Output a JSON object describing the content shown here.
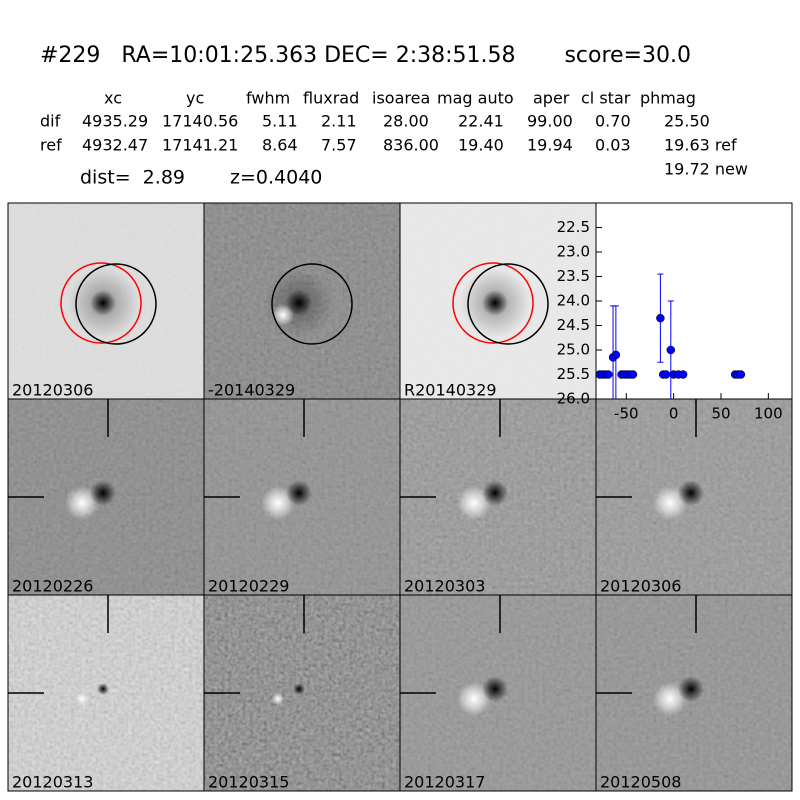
{
  "header": {
    "title": "#229   RA=10:01:25.363 DEC= 2:38:51.58       score=30.0",
    "columns": [
      "xc",
      "yc",
      "fwhm",
      "fluxrad",
      "isoarea",
      "mag auto",
      "aper",
      "cl star",
      "phmag"
    ],
    "rows": [
      {
        "label": "dif",
        "cells": [
          "4935.29",
          "17140.56",
          "5.11",
          "2.11",
          "28.00",
          "22.41",
          "99.00",
          "0.70",
          "25.50"
        ]
      },
      {
        "label": "ref",
        "cells": [
          "4932.47",
          "17141.21",
          "8.64",
          "7.57",
          "836.00",
          "19.40",
          "19.94",
          "0.03",
          "19.63 ref"
        ]
      }
    ],
    "new": "19.72 new",
    "dist": "dist=  2.89",
    "z": "z=0.4040"
  },
  "stamps": [
    {
      "label": "20120306"
    },
    {
      "label": "-20140329"
    },
    {
      "label": "R20140329"
    },
    {
      "label": "20120226"
    },
    {
      "label": "20120229"
    },
    {
      "label": "20120303"
    },
    {
      "label": "20120306",
      "color": "#ff0000"
    },
    {
      "label": "20120313"
    },
    {
      "label": "20120315"
    },
    {
      "label": "20120317"
    },
    {
      "label": "20120508"
    }
  ],
  "chart_data": {
    "type": "scatter",
    "color": "#0000ff",
    "x": [
      -78,
      -75,
      -72,
      -69,
      -64,
      -61,
      -55,
      -52,
      -49,
      -46,
      -43,
      -14,
      -11,
      -8,
      -3,
      0,
      5,
      10,
      65,
      68,
      71
    ],
    "values": [
      25.5,
      25.5,
      25.5,
      25.5,
      25.15,
      25.1,
      25.5,
      25.5,
      25.5,
      25.5,
      25.5,
      24.35,
      25.5,
      25.5,
      25.0,
      25.5,
      25.5,
      25.5,
      25.5,
      25.5,
      25.5
    ],
    "errors": [
      0.05,
      0.05,
      0.05,
      0.05,
      1.05,
      1.0,
      0.05,
      0.05,
      0.05,
      0.05,
      0.05,
      0.9,
      0.05,
      0.05,
      1.0,
      0.05,
      0.05,
      0.05,
      0.05,
      0.05,
      0.05
    ],
    "xlim": [
      -82,
      125
    ],
    "ylim": [
      26.0,
      22.0
    ],
    "y_inverted": true,
    "xticks": [
      -50,
      0,
      50,
      100
    ],
    "yticks": [
      22.5,
      {
        "value": 23,
        "label": "23.0"
      },
      23.5,
      {
        "value": 24,
        "label": "24.0"
      },
      24.5,
      {
        "value": 25,
        "label": "25.0"
      },
      25.5,
      {
        "value": 26,
        "label": "26.0"
      }
    ]
  }
}
